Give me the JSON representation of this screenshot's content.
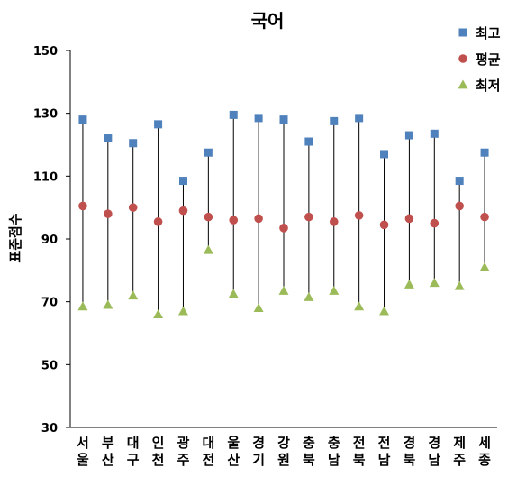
{
  "chart_data": {
    "type": "scatter",
    "title": "국어",
    "ylabel": "표준점수",
    "xlabel": "",
    "ylim": [
      30,
      150
    ],
    "yticks": [
      30,
      50,
      70,
      90,
      110,
      130,
      150
    ],
    "grid": false,
    "legend_position": "top-right",
    "categories": [
      "서울",
      "부산",
      "대구",
      "인천",
      "광주",
      "대전",
      "울산",
      "경기",
      "강원",
      "충북",
      "충남",
      "전북",
      "전남",
      "경북",
      "경남",
      "제주",
      "세종"
    ],
    "series": [
      {
        "name": "최고",
        "marker": "square",
        "color": "#4F81BD",
        "values": [
          128,
          122,
          120.5,
          126.5,
          108.5,
          117.5,
          129.5,
          128.5,
          128,
          121,
          127.5,
          128.5,
          117,
          123,
          123.5,
          108.5,
          117.5
        ]
      },
      {
        "name": "평균",
        "marker": "circle",
        "color": "#C0504D",
        "values": [
          100.5,
          98,
          100,
          95.5,
          99,
          97,
          96,
          96.5,
          93.5,
          97,
          95.5,
          97.5,
          94.5,
          96.5,
          95,
          100.5,
          97
        ]
      },
      {
        "name": "최저",
        "marker": "triangle",
        "color": "#9BBB59",
        "values": [
          68.5,
          69,
          72,
          66,
          67,
          86.5,
          72.5,
          68,
          73.5,
          71.5,
          73.5,
          68.5,
          67,
          75.5,
          76,
          75,
          81
        ]
      }
    ]
  }
}
